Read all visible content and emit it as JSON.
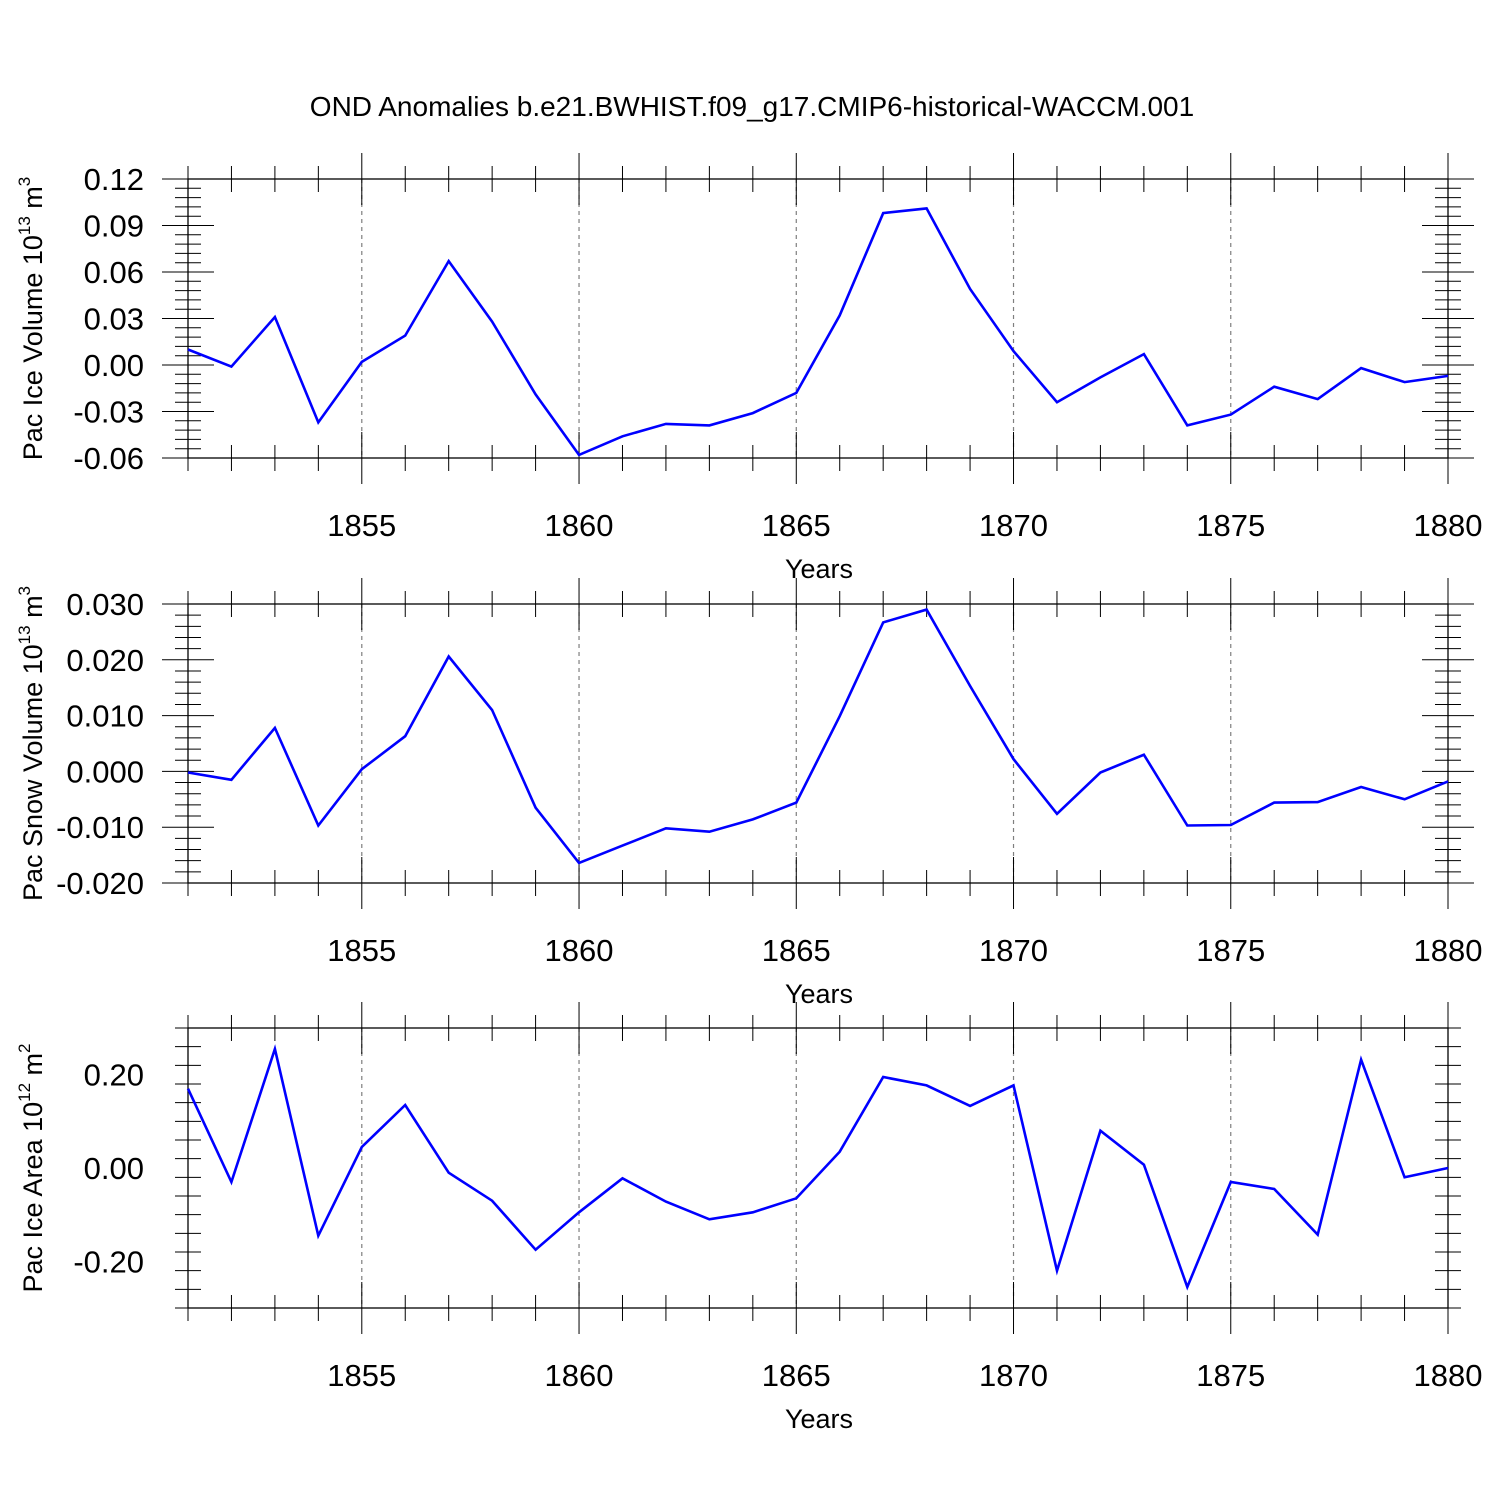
{
  "title": "OND Anomalies b.e21.BWHIST.f09_g17.CMIP6-historical-WACCM.001",
  "colors": {
    "line": "#0000ff",
    "axes": "#000000",
    "grid": "#7f7f7f"
  },
  "chart_data": [
    {
      "type": "line",
      "xlabel": "Years",
      "ylabel": {
        "main": "Pac Ice Volume 10",
        "exp": "13",
        "unit": " m",
        "unit_exp": "3"
      },
      "xlim": [
        1851,
        1880
      ],
      "ylim": [
        -0.06,
        0.12
      ],
      "x_ticks": [
        "1855",
        "1860",
        "1865",
        "1870",
        "1875",
        "1880"
      ],
      "y_ticks": [
        "-0.06",
        "-0.03",
        "0.00",
        "0.03",
        "0.06",
        "0.09",
        "0.12"
      ],
      "x_grid": "dashed vertical at labeled years",
      "series": [
        {
          "x": [
            1851,
            1852,
            1853,
            1854,
            1855,
            1856,
            1857,
            1858,
            1859,
            1860,
            1861,
            1862,
            1863,
            1864,
            1865,
            1866,
            1867,
            1868,
            1869,
            1870,
            1871,
            1872,
            1873,
            1874,
            1875,
            1876,
            1877,
            1878,
            1879,
            1880
          ],
          "values": [
            0.01,
            -0.001,
            0.031,
            -0.037,
            0.002,
            0.019,
            0.067,
            0.028,
            -0.019,
            -0.058,
            -0.046,
            -0.038,
            -0.039,
            -0.031,
            -0.018,
            0.032,
            0.098,
            0.101,
            0.049,
            0.009,
            -0.024,
            -0.008,
            0.007,
            -0.039,
            -0.032,
            -0.014,
            -0.022,
            -0.002,
            -0.011,
            -0.007
          ]
        }
      ]
    },
    {
      "type": "line",
      "xlabel": "Years",
      "ylabel": {
        "main": "Pac Snow Volume 10",
        "exp": "13",
        "unit": " m",
        "unit_exp": "3"
      },
      "xlim": [
        1851,
        1880
      ],
      "ylim": [
        -0.02,
        0.03
      ],
      "x_ticks": [
        "1855",
        "1860",
        "1865",
        "1870",
        "1875",
        "1880"
      ],
      "y_ticks": [
        "-0.020",
        "-0.010",
        "0.000",
        "0.010",
        "0.020",
        "0.030"
      ],
      "x_grid": "dashed vertical at labeled years",
      "series": [
        {
          "x": [
            1851,
            1852,
            1853,
            1854,
            1855,
            1856,
            1857,
            1858,
            1859,
            1860,
            1861,
            1862,
            1863,
            1864,
            1865,
            1866,
            1867,
            1868,
            1869,
            1870,
            1871,
            1872,
            1873,
            1874,
            1875,
            1876,
            1877,
            1878,
            1879,
            1880
          ],
          "values": [
            -0.0002,
            -0.0015,
            0.0078,
            -0.0097,
            0.0004,
            0.0063,
            0.0206,
            0.011,
            -0.0065,
            -0.0164,
            -0.0133,
            -0.0102,
            -0.0108,
            -0.0086,
            -0.0056,
            0.0099,
            0.0267,
            0.029,
            0.0153,
            0.0022,
            -0.0076,
            -0.0002,
            0.003,
            -0.0097,
            -0.0096,
            -0.0056,
            -0.0055,
            -0.0028,
            -0.005,
            -0.0018
          ]
        }
      ]
    },
    {
      "type": "line",
      "xlabel": "Years",
      "ylabel": {
        "main": "Pac Ice Area 10",
        "exp": "12",
        "unit": " m",
        "unit_exp": "2"
      },
      "xlim": [
        1851,
        1880
      ],
      "ylim": [
        -0.3,
        0.3
      ],
      "x_ticks": [
        "1855",
        "1860",
        "1865",
        "1870",
        "1875",
        "1880"
      ],
      "y_ticks": [
        "-0.20",
        "0.00",
        "0.20"
      ],
      "x_grid": "dashed vertical at labeled years",
      "series": [
        {
          "x": [
            1851,
            1852,
            1853,
            1854,
            1855,
            1856,
            1857,
            1858,
            1859,
            1860,
            1861,
            1862,
            1863,
            1864,
            1865,
            1866,
            1867,
            1868,
            1869,
            1870,
            1871,
            1872,
            1873,
            1874,
            1875,
            1876,
            1877,
            1878,
            1879,
            1880
          ],
          "values": [
            0.17,
            -0.03,
            0.255,
            -0.145,
            0.045,
            0.135,
            -0.01,
            -0.07,
            -0.175,
            -0.095,
            -0.022,
            -0.072,
            -0.11,
            -0.095,
            -0.065,
            0.035,
            0.195,
            0.177,
            0.133,
            0.177,
            -0.22,
            0.08,
            0.007,
            -0.255,
            -0.03,
            -0.045,
            -0.143,
            0.232,
            -0.02,
            0.0
          ]
        }
      ]
    }
  ]
}
